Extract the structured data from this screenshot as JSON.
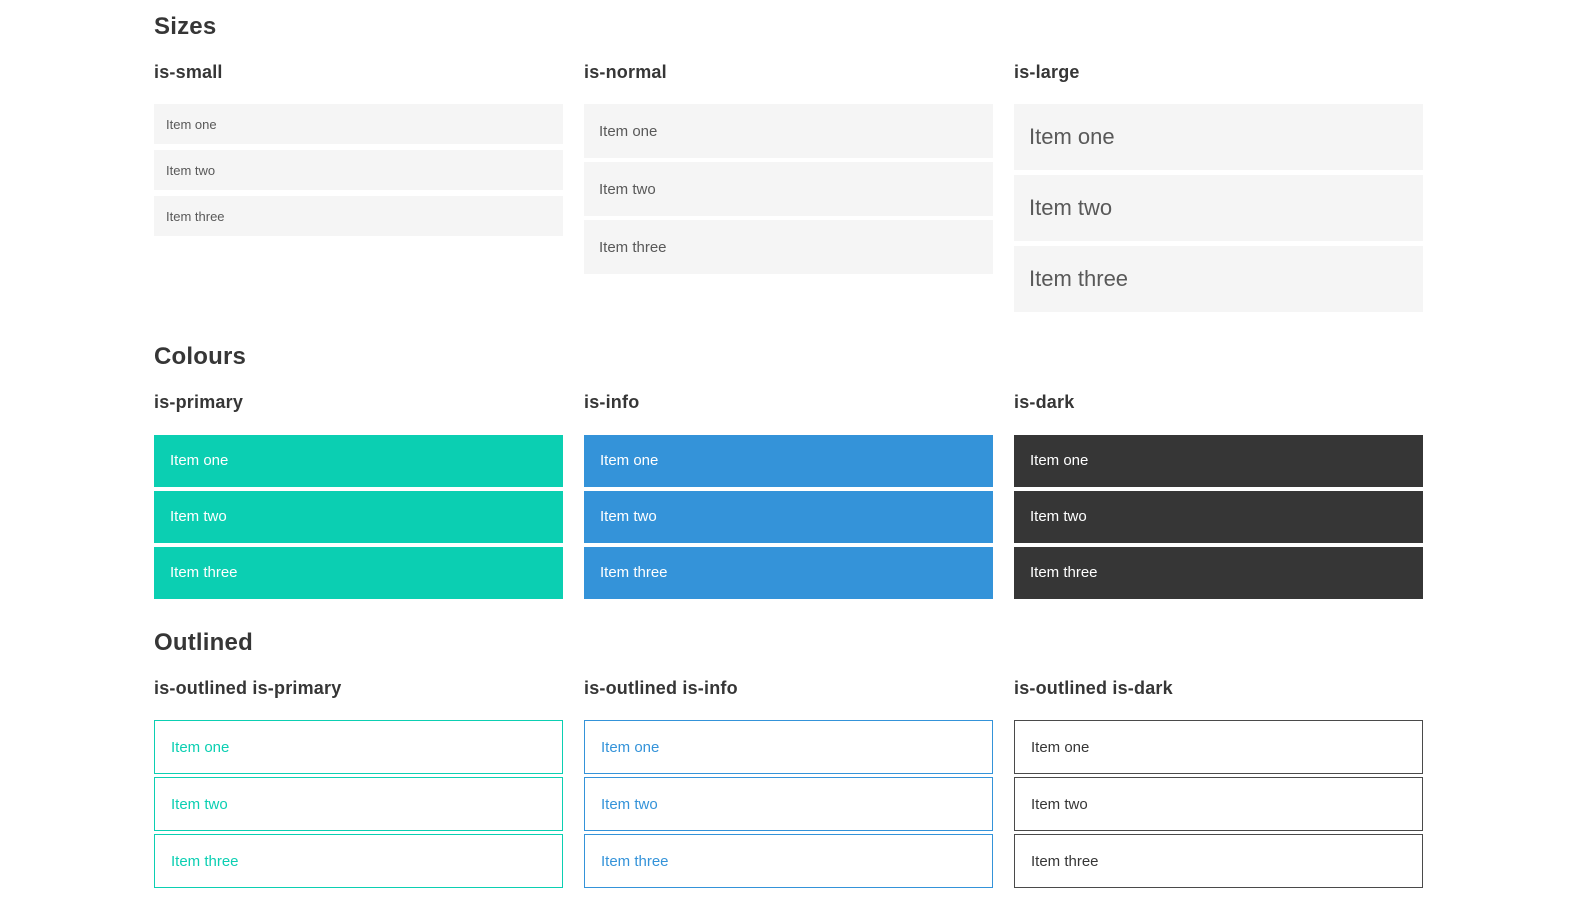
{
  "colors": {
    "page_background": "#ffffff",
    "primary": "#0bcfb2",
    "info": "#3493d9",
    "dark": "#363636",
    "light_item_background": "#f5f5f5",
    "heading_text": "#363636",
    "muted_item_text": "#595959",
    "inverted_item_text": "#ffffff"
  },
  "sections": [
    {
      "title": "Sizes",
      "groups": [
        {
          "label": "is-small",
          "items": [
            "Item one",
            "Item two",
            "Item three"
          ]
        },
        {
          "label": "is-normal",
          "items": [
            "Item one",
            "Item two",
            "Item three"
          ]
        },
        {
          "label": "is-large",
          "items": [
            "Item one",
            "Item two",
            "Item three"
          ]
        }
      ]
    },
    {
      "title": "Colours",
      "groups": [
        {
          "label": "is-primary",
          "items": [
            "Item one",
            "Item two",
            "Item three"
          ]
        },
        {
          "label": "is-info",
          "items": [
            "Item one",
            "Item two",
            "Item three"
          ]
        },
        {
          "label": "is-dark",
          "items": [
            "Item one",
            "Item two",
            "Item three"
          ]
        }
      ]
    },
    {
      "title": "Outlined",
      "groups": [
        {
          "label": "is-outlined is-primary",
          "items": [
            "Item one",
            "Item two",
            "Item three"
          ]
        },
        {
          "label": "is-outlined is-info",
          "items": [
            "Item one",
            "Item two",
            "Item three"
          ]
        },
        {
          "label": "is-outlined is-dark",
          "items": [
            "Item one",
            "Item two",
            "Item three"
          ]
        }
      ]
    }
  ]
}
